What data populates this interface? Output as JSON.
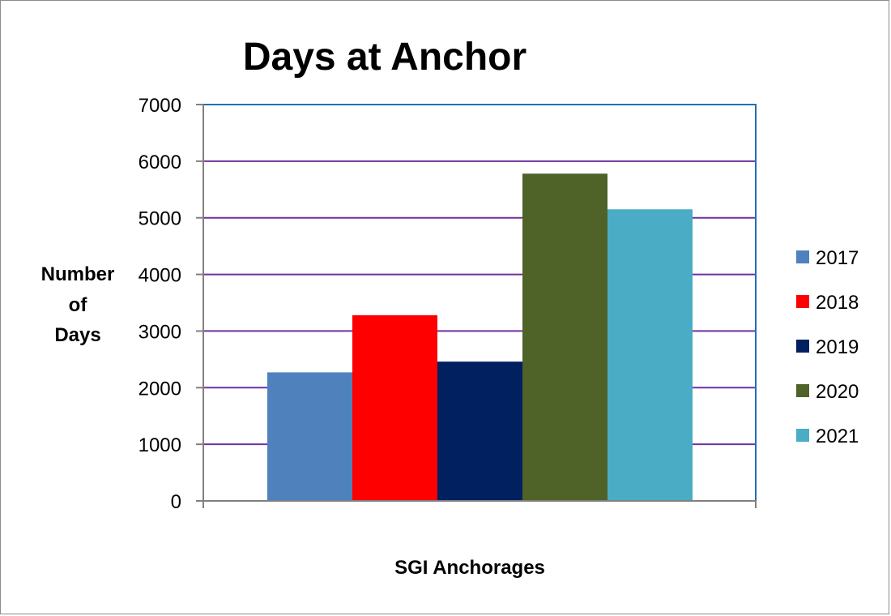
{
  "chart_data": {
    "type": "bar",
    "title": "Days at Anchor",
    "ylabel": [
      "Number",
      "of",
      "Days"
    ],
    "xlabel": "SGI Anchorages",
    "ylim": [
      0,
      7000
    ],
    "yticks": [
      0,
      1000,
      2000,
      3000,
      4000,
      5000,
      6000,
      7000
    ],
    "grid": true,
    "legend_position": "right",
    "series": [
      {
        "name": "2017",
        "value": 2270,
        "color": "#4f81bd"
      },
      {
        "name": "2018",
        "value": 3280,
        "color": "#ff0000"
      },
      {
        "name": "2019",
        "value": 2460,
        "color": "#002060"
      },
      {
        "name": "2020",
        "value": 5780,
        "color": "#4f6228"
      },
      {
        "name": "2021",
        "value": 5150,
        "color": "#4bacc6"
      }
    ],
    "colors": {
      "grid": "#7030a0",
      "plot_border": "#1f6fb5",
      "axis": "#808080"
    }
  }
}
